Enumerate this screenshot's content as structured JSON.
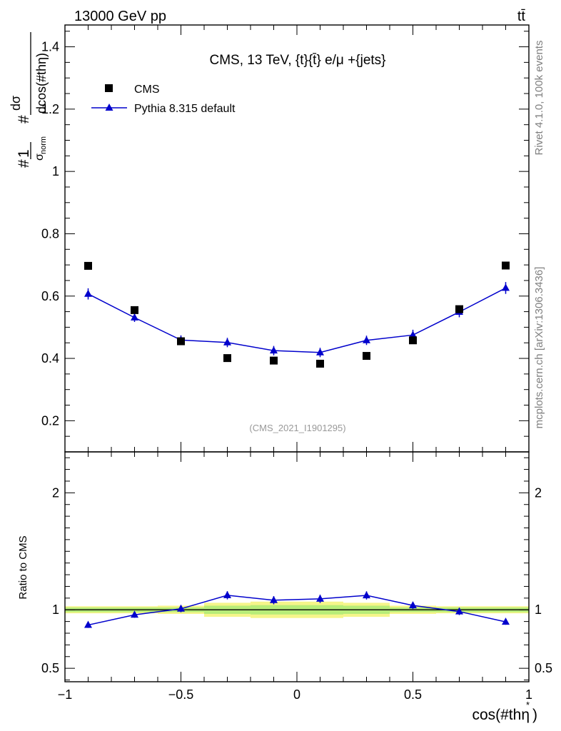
{
  "header": {
    "left": "13000 GeV pp",
    "right": "tt̄"
  },
  "side_labels": {
    "rivet": "Rivet 4.1.0,  100k events",
    "mcplots": "mcplots.cern.ch [arXiv:1306.3436]"
  },
  "chart_data": [
    {
      "type": "scatter",
      "title": "CMS, 13 TeV, {t}{t̄} e/μ +{jets}",
      "watermark": "(CMS_2021_I1901295)",
      "xlabel": "cos(#thη*)",
      "ylabel": "#1/σnorm #dσ/dcos(#thη)",
      "xlim": [
        -1.0,
        1.0
      ],
      "ylim": [
        0.1,
        1.47
      ],
      "yticks": [
        0.2,
        0.4,
        0.6,
        0.8,
        1.0,
        1.2,
        1.4
      ],
      "ytick_labels": [
        "0.2",
        "0.4",
        "0.6",
        "0.8",
        "1",
        "1.2",
        "1.4"
      ],
      "legend": [
        {
          "name": "CMS",
          "marker": "square",
          "color": "#000000"
        },
        {
          "name": "Pythia 8.315 default",
          "marker": "triangle",
          "color": "#0000cc"
        }
      ],
      "x": [
        -0.9,
        -0.7,
        -0.5,
        -0.3,
        -0.1,
        0.1,
        0.3,
        0.5,
        0.7,
        0.9
      ],
      "series": [
        {
          "name": "CMS",
          "values": [
            0.697,
            0.555,
            0.455,
            0.401,
            0.393,
            0.383,
            0.408,
            0.458,
            0.558,
            0.698
          ]
        },
        {
          "name": "Pythia 8.315 default",
          "values": [
            0.607,
            0.531,
            0.459,
            0.451,
            0.425,
            0.419,
            0.458,
            0.475,
            0.549,
            0.626
          ],
          "errors": [
            0.018,
            0.014,
            0.015,
            0.015,
            0.015,
            0.015,
            0.015,
            0.017,
            0.017,
            0.019
          ]
        }
      ]
    },
    {
      "type": "line",
      "ylabel": "Ratio to CMS",
      "xlim": [
        -1.0,
        1.0
      ],
      "ylim": [
        0.385,
        2.35
      ],
      "yticks": [
        0.5,
        1.0,
        2.0
      ],
      "ytick_labels": [
        "0.5",
        "1",
        "2"
      ],
      "xticks": [
        -1.0,
        -0.5,
        0.0,
        0.5,
        1.0
      ],
      "xtick_labels": [
        "−1",
        "−0.5",
        "0",
        "0.5",
        "1"
      ],
      "x": [
        -0.9,
        -0.7,
        -0.5,
        -0.3,
        -0.1,
        0.1,
        0.3,
        0.5,
        0.7,
        0.9
      ],
      "series": [
        {
          "name": "Pythia 8.315 default",
          "values": [
            0.87,
            0.957,
            1.009,
            1.124,
            1.082,
            1.094,
            1.123,
            1.037,
            0.985,
            0.897
          ],
          "errors": [
            0.025,
            0.025,
            0.03,
            0.035,
            0.035,
            0.035,
            0.035,
            0.03,
            0.03,
            0.025
          ]
        }
      ],
      "band": {
        "green": [
          0.02,
          0.02,
          0.02,
          0.035,
          0.04,
          0.04,
          0.035,
          0.02,
          0.02,
          0.02
        ],
        "yellow": [
          0.03,
          0.03,
          0.035,
          0.06,
          0.07,
          0.07,
          0.06,
          0.035,
          0.03,
          0.03
        ]
      }
    }
  ]
}
